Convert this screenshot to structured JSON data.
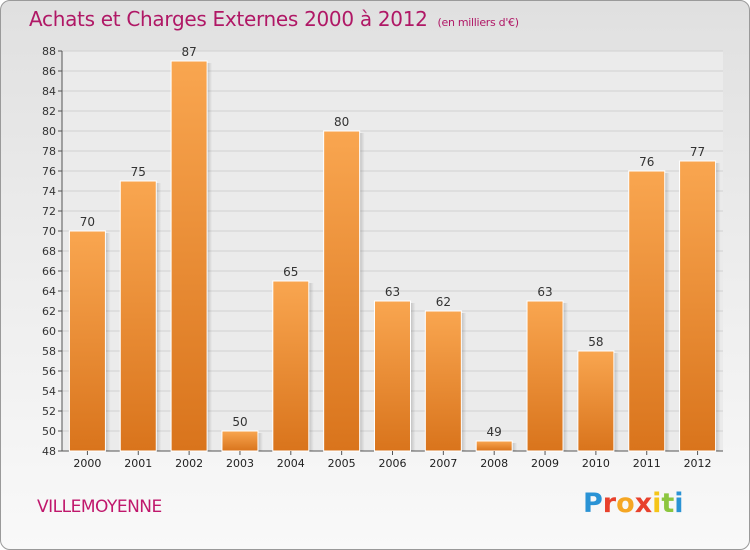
{
  "chart_data": {
    "type": "bar",
    "title": "Achats et Charges Externes 2000 à 2012",
    "subtitle": "(en milliers d'€)",
    "categories": [
      "2000",
      "2001",
      "2002",
      "2003",
      "2004",
      "2005",
      "2006",
      "2007",
      "2008",
      "2009",
      "2010",
      "2011",
      "2012"
    ],
    "values": [
      70,
      75,
      87,
      50,
      65,
      80,
      63,
      62,
      49,
      63,
      58,
      76,
      77
    ],
    "ylim": [
      48,
      88
    ],
    "yticks": [
      48,
      50,
      52,
      54,
      56,
      58,
      60,
      62,
      64,
      66,
      68,
      70,
      72,
      74,
      76,
      78,
      80,
      82,
      84,
      86,
      88
    ],
    "grid": true,
    "legend": "none",
    "colors": {
      "bar_light": "#f9a650",
      "bar_dark": "#d9741c",
      "title": "#b01866"
    }
  },
  "footer": {
    "city": "VILLEMOYENNE",
    "logo_letters": [
      "P",
      "r",
      "o",
      "x",
      "i",
      "t",
      "i"
    ],
    "logo_colors": [
      "#2a93d5",
      "#e8412c",
      "#f5a623",
      "#e8412c",
      "#f5c518",
      "#8cc63f",
      "#2a93d5"
    ]
  }
}
